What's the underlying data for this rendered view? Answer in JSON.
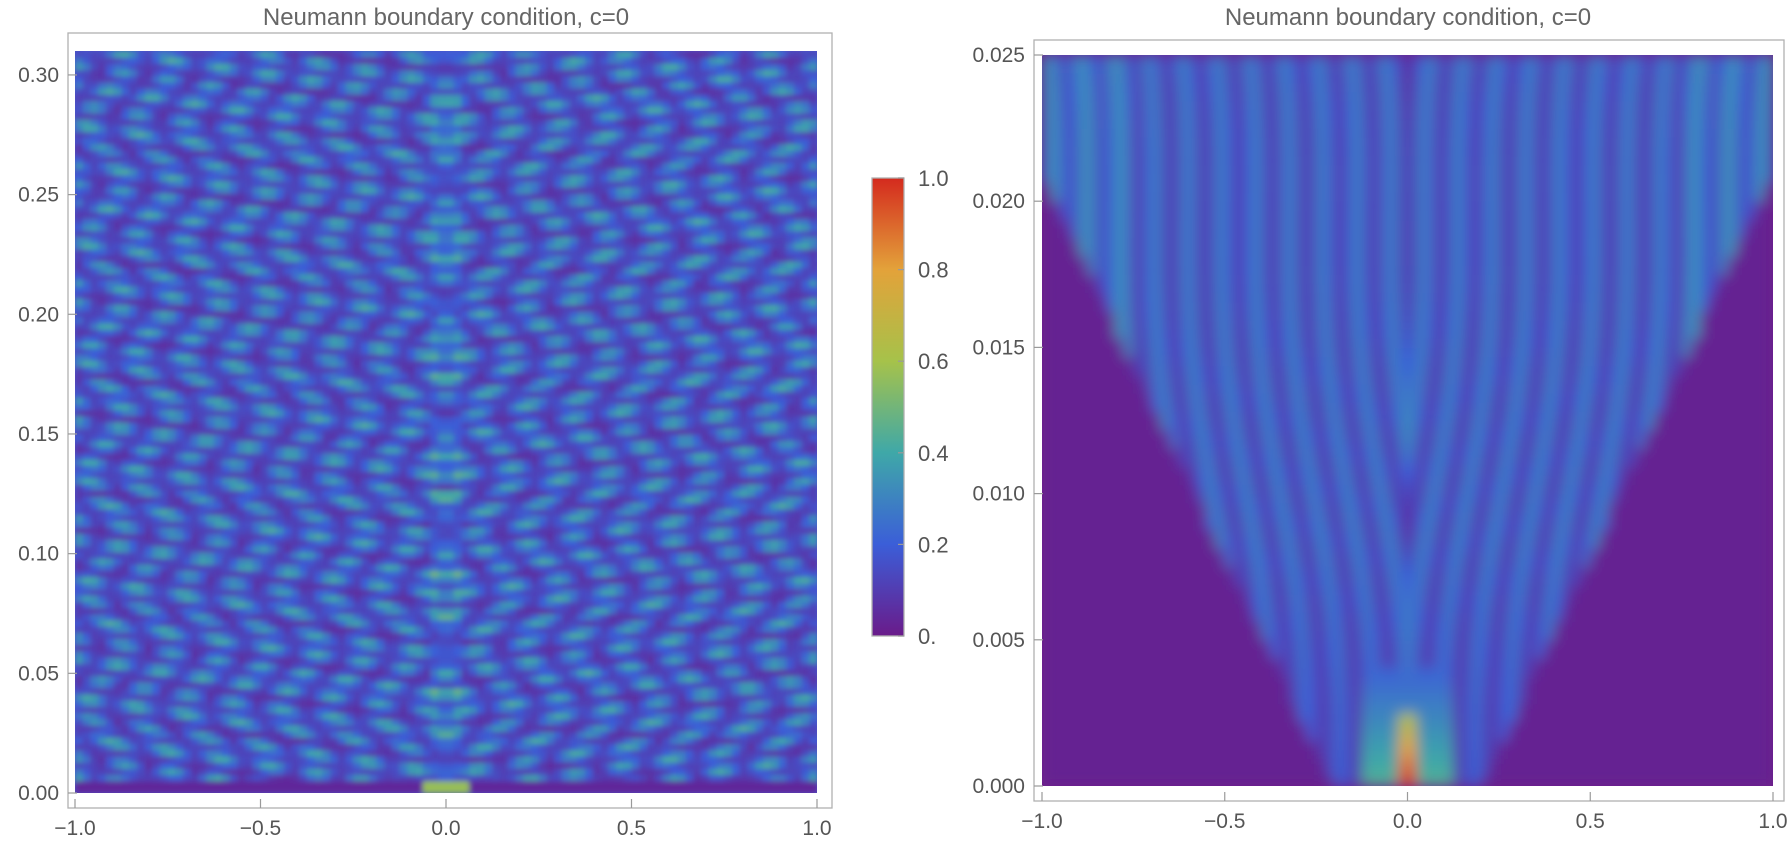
{
  "chart_data": [
    {
      "type": "heatmap",
      "title": "Neumann boundary condition, c=0",
      "xlabel": "",
      "ylabel": "",
      "xlim": [
        -1.0,
        1.0
      ],
      "ylim": [
        0.0,
        0.31
      ],
      "x_ticks": [
        -1.0,
        -0.5,
        0.0,
        0.5,
        1.0
      ],
      "x_tick_labels": [
        "−1.0",
        "−0.5",
        "0.0",
        "0.5",
        "1.0"
      ],
      "y_ticks": [
        0.0,
        0.05,
        0.1,
        0.15,
        0.2,
        0.25,
        0.3
      ],
      "y_tick_labels": [
        "0.00",
        "0.05",
        "0.10",
        "0.15",
        "0.20",
        "0.25",
        "0.30"
      ],
      "colorscale": "rainbow (purple-blue-green-yellow-red)",
      "zlim": [
        0.0,
        1.0
      ]
    },
    {
      "type": "heatmap",
      "title": "Neumann boundary condition, c=0",
      "xlabel": "",
      "ylabel": "",
      "xlim": [
        -1.0,
        1.0
      ],
      "ylim": [
        0.0,
        0.025
      ],
      "x_ticks": [
        -1.0,
        -0.5,
        0.0,
        0.5,
        1.0
      ],
      "x_tick_labels": [
        "−1.0",
        "−0.5",
        "0.0",
        "0.5",
        "1.0"
      ],
      "y_ticks": [
        0.0,
        0.005,
        0.01,
        0.015,
        0.02,
        0.025
      ],
      "y_tick_labels": [
        "0.000",
        "0.005",
        "0.010",
        "0.015",
        "0.020",
        "0.025"
      ],
      "colorscale": "rainbow (purple-blue-green-yellow-red)",
      "zlim": [
        0.0,
        1.0
      ]
    }
  ],
  "colorbar": {
    "ticks": [
      0.0,
      0.2,
      0.4,
      0.6,
      0.8,
      1.0
    ],
    "tick_labels": [
      "0.",
      "0.2",
      "0.4",
      "0.6",
      "0.8",
      "1.0"
    ],
    "colors": [
      "#6a1b8a",
      "#3b5ed8",
      "#3fa8a8",
      "#a6c24a",
      "#e3a23a",
      "#d42a1e"
    ]
  }
}
